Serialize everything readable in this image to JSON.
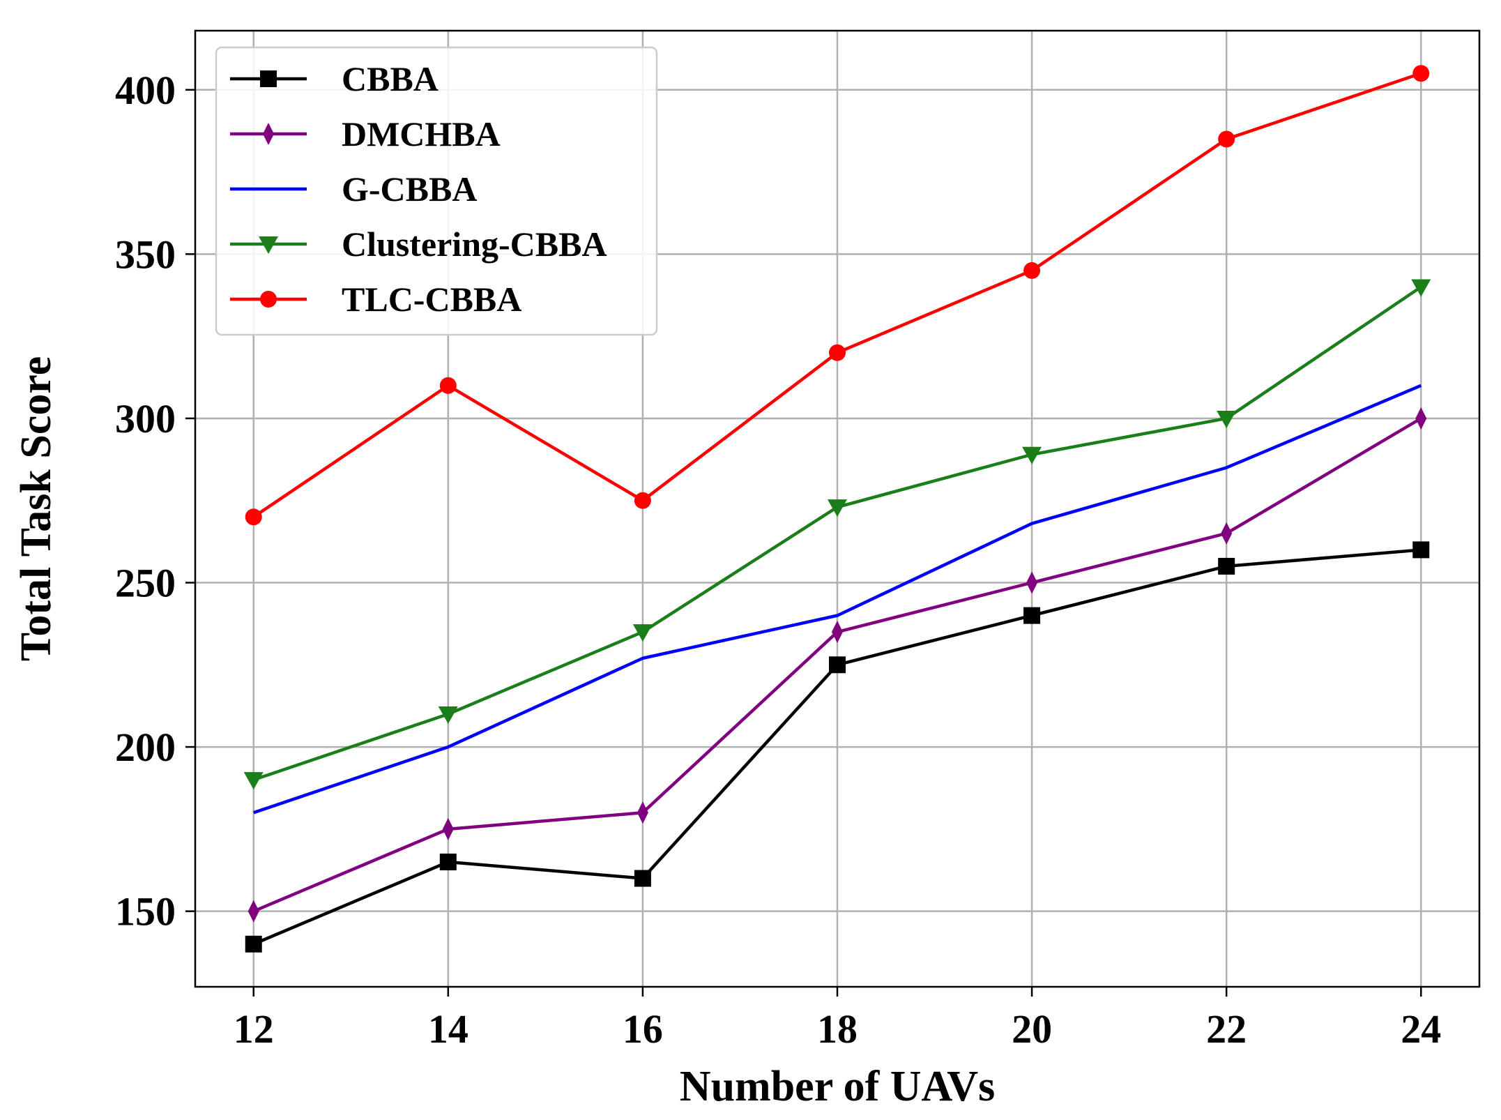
{
  "chart_data": {
    "type": "line",
    "title": "",
    "xlabel": "Number of UAVs",
    "ylabel": "Total Task Score",
    "x": [
      12,
      14,
      16,
      18,
      20,
      22,
      24
    ],
    "xticks": [
      12,
      14,
      16,
      18,
      20,
      22,
      24
    ],
    "yticks": [
      150,
      200,
      250,
      300,
      350,
      400
    ],
    "xlim": [
      11.4,
      24.6
    ],
    "ylim": [
      127,
      418
    ],
    "grid": true,
    "legend_position": "top-left",
    "series": [
      {
        "name": "CBBA",
        "color": "#000000",
        "marker": "square",
        "values": [
          140,
          165,
          160,
          225,
          240,
          255,
          260
        ]
      },
      {
        "name": "DMCHBA",
        "color": "#800080",
        "marker": "thin-diamond",
        "values": [
          150,
          175,
          180,
          235,
          250,
          265,
          300
        ]
      },
      {
        "name": "G-CBBA",
        "color": "#0000ff",
        "marker": "none",
        "values": [
          180,
          200,
          227,
          240,
          268,
          285,
          310
        ]
      },
      {
        "name": "Clustering-CBBA",
        "color": "#1a7f1a",
        "marker": "triangle-down",
        "values": [
          190,
          210,
          235,
          273,
          289,
          300,
          340
        ]
      },
      {
        "name": "TLC-CBBA",
        "color": "#ff0000",
        "marker": "circle",
        "values": [
          270,
          310,
          275,
          320,
          345,
          385,
          405
        ]
      }
    ]
  }
}
